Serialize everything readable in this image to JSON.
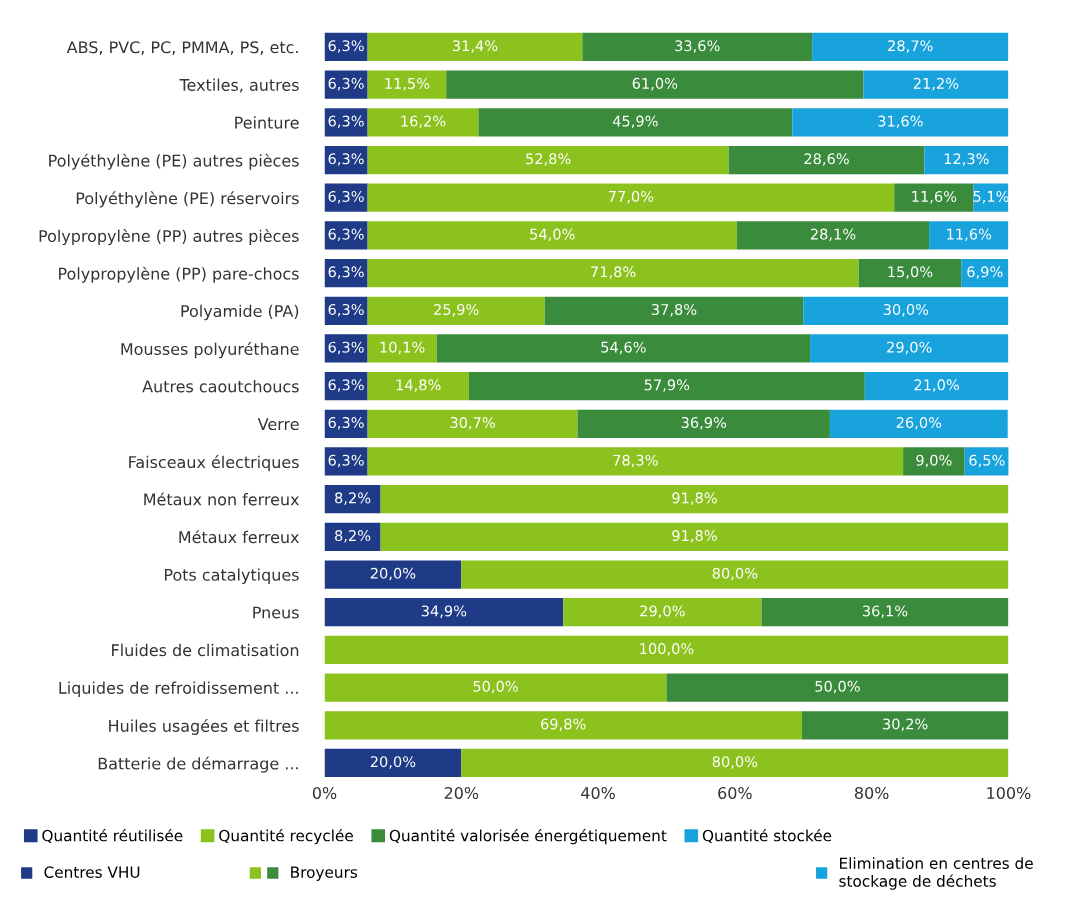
{
  "chart_data": {
    "type": "bar",
    "orientation": "horizontal",
    "stacked": true,
    "categories": [
      "ABS, PVC, PC, PMMA, PS, etc.",
      "Textiles, autres",
      "Peinture",
      "Polyéthylène (PE) autres pièces",
      "Polyéthylène (PE) réservoirs",
      "Polypropylène (PP) autres pièces",
      "Polypropylène (PP) pare-chocs",
      "Polyamide (PA)",
      "Mousses polyuréthane",
      "Autres caoutchoucs",
      "Verre",
      "Faisceaux électriques",
      "Métaux non ferreux",
      "Métaux ferreux",
      "Pots catalytiques",
      "Pneus",
      "Fluides de climatisation",
      "Liquides de refroidissement ...",
      "Huiles usagées et filtres",
      "Batterie de démarrage ..."
    ],
    "series": [
      {
        "name": "Quantité réutilisée",
        "color": "#1f3b87",
        "values": [
          6.3,
          6.3,
          6.3,
          6.3,
          6.3,
          6.3,
          6.3,
          6.3,
          6.3,
          6.3,
          6.3,
          6.3,
          8.2,
          8.2,
          20.0,
          34.9,
          null,
          null,
          null,
          20.0
        ],
        "value_labels": [
          "6,3%",
          "6,3%",
          "6,3%",
          "6,3%",
          "6,3%",
          "6,3%",
          "6,3%",
          "6,3%",
          "6,3%",
          "6,3%",
          "6,3%",
          "6,3%",
          "8,2%",
          "8,2%",
          "20,0%",
          "34,9%",
          null,
          null,
          null,
          "20,0%"
        ]
      },
      {
        "name": "Quantité recyclée",
        "color": "#8cc21e",
        "values": [
          31.4,
          11.5,
          16.2,
          52.8,
          77.0,
          54.0,
          71.8,
          25.9,
          10.1,
          14.8,
          30.7,
          78.3,
          91.8,
          91.8,
          80.0,
          29.0,
          100.0,
          50.0,
          69.8,
          80.0
        ],
        "value_labels": [
          "31,4%",
          "11,5%",
          "16,2%",
          "52,8%",
          "77,0%",
          "54,0%",
          "71,8%",
          "25,9%",
          "10,1%",
          "14,8%",
          "30,7%",
          "78,3%",
          "91,8%",
          "91,8%",
          "80,0%",
          "29,0%",
          "100,0%",
          "50,0%",
          "69,8%",
          "80,0%"
        ]
      },
      {
        "name": "Quantité valorisée énergétiquement",
        "color": "#3a8c3c",
        "values": [
          33.6,
          61.0,
          45.9,
          28.6,
          11.6,
          28.1,
          15.0,
          37.8,
          54.6,
          57.9,
          36.9,
          9.0,
          null,
          null,
          null,
          36.1,
          null,
          50.0,
          30.2,
          null
        ],
        "value_labels": [
          "33,6%",
          "61,0%",
          "45,9%",
          "28,6%",
          "11,6%",
          "28,1%",
          "15,0%",
          "37,8%",
          "54,6%",
          "57,9%",
          "36,9%",
          "9,0%",
          null,
          null,
          null,
          "36,1%",
          null,
          "50,0%",
          "30,2%",
          null
        ]
      },
      {
        "name": "Quantité stockée",
        "color": "#19a3dc",
        "values": [
          28.7,
          21.2,
          31.6,
          12.3,
          5.1,
          11.6,
          6.9,
          30.0,
          29.0,
          21.0,
          26.0,
          6.5,
          null,
          null,
          null,
          null,
          null,
          null,
          null,
          null
        ],
        "value_labels": [
          "28,7%",
          "21,2%",
          "31,6%",
          "12,3%",
          "5,1%",
          "11,6%",
          "6,9%",
          "30,0%",
          "29,0%",
          "21,0%",
          "26,0%",
          "6,5%",
          null,
          null,
          null,
          null,
          null,
          null,
          null,
          null
        ]
      }
    ],
    "xlim": [
      0,
      100
    ],
    "xticks": [
      {
        "value": 0,
        "label": "0%"
      },
      {
        "value": 20,
        "label": "20%"
      },
      {
        "value": 40,
        "label": "40%"
      },
      {
        "value": 60,
        "label": "60%"
      },
      {
        "value": 80,
        "label": "80%"
      },
      {
        "value": 100,
        "label": "100%"
      }
    ],
    "grid": false,
    "legend": "bottom",
    "annotations": [
      "Centres VHU",
      "Broyeurs",
      "Elimination en centres de stockage de déchets"
    ]
  }
}
